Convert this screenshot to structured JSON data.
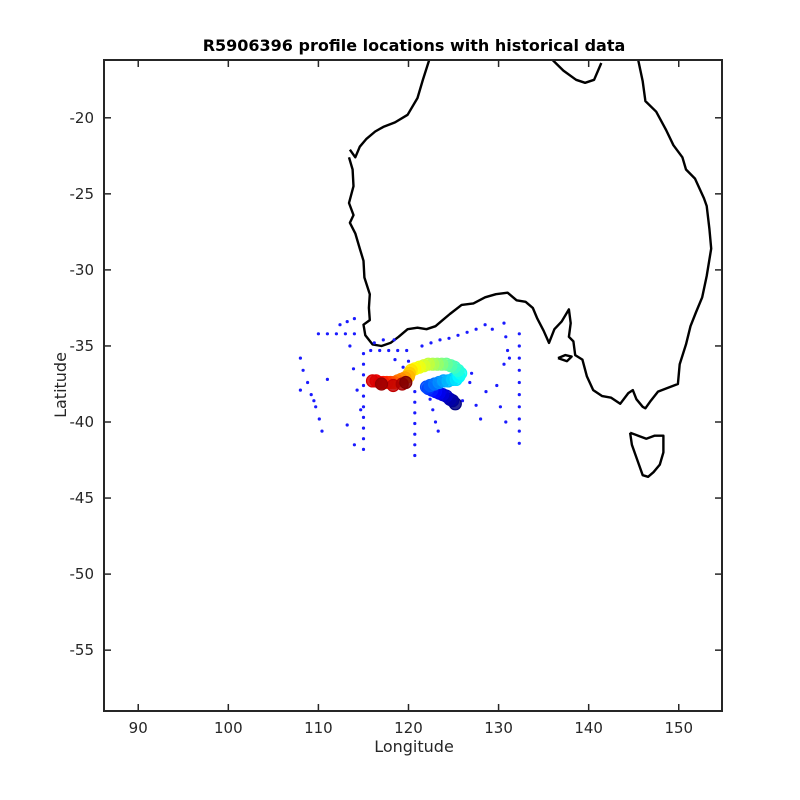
{
  "chart_data": {
    "type": "scatter",
    "title": "R5906396 profile locations with historical data",
    "xlabel": "Longitude",
    "ylabel": "Latitude",
    "xlim": [
      86.2,
      154.8
    ],
    "ylim": [
      -59,
      -16.2
    ],
    "xticks": [
      90,
      100,
      110,
      120,
      130,
      140,
      150
    ],
    "yticks": [
      -20,
      -25,
      -30,
      -35,
      -40,
      -45,
      -50,
      -55
    ],
    "grid": false,
    "colors": {
      "coastline": "#000000",
      "historical": "#1a1aff",
      "float_track_start": "#00008b",
      "float_track_end": "#8b0000"
    },
    "coastlines": [
      {
        "name": "Australia",
        "points": [
          [
            113.4,
            -22.6
          ],
          [
            113.8,
            -23.4
          ],
          [
            113.9,
            -24.5
          ],
          [
            113.4,
            -25.6
          ],
          [
            113.9,
            -26.4
          ],
          [
            113.5,
            -26.9
          ],
          [
            114.1,
            -27.6
          ],
          [
            114.6,
            -28.6
          ],
          [
            115.0,
            -29.4
          ],
          [
            115.1,
            -30.5
          ],
          [
            115.7,
            -31.6
          ],
          [
            115.6,
            -32.5
          ],
          [
            115.7,
            -33.3
          ],
          [
            115.0,
            -33.6
          ],
          [
            115.2,
            -34.3
          ],
          [
            116.0,
            -34.9
          ],
          [
            117.0,
            -35.0
          ],
          [
            118.0,
            -34.8
          ],
          [
            118.9,
            -34.4
          ],
          [
            119.9,
            -33.9
          ],
          [
            121.0,
            -33.8
          ],
          [
            122.0,
            -33.9
          ],
          [
            123.0,
            -33.7
          ],
          [
            123.8,
            -33.3
          ],
          [
            124.6,
            -32.9
          ],
          [
            125.9,
            -32.3
          ],
          [
            127.2,
            -32.2
          ],
          [
            128.5,
            -31.8
          ],
          [
            129.7,
            -31.6
          ],
          [
            131.0,
            -31.5
          ],
          [
            132.0,
            -32.0
          ],
          [
            133.0,
            -32.1
          ],
          [
            133.8,
            -32.5
          ],
          [
            134.3,
            -33.2
          ],
          [
            135.0,
            -34.0
          ],
          [
            135.6,
            -34.8
          ],
          [
            136.2,
            -33.9
          ],
          [
            137.0,
            -33.4
          ],
          [
            137.8,
            -32.6
          ],
          [
            138.0,
            -33.5
          ],
          [
            137.8,
            -34.4
          ],
          [
            138.3,
            -34.7
          ],
          [
            138.5,
            -35.6
          ],
          [
            139.3,
            -35.9
          ],
          [
            139.8,
            -37.0
          ],
          [
            140.5,
            -37.9
          ],
          [
            141.5,
            -38.3
          ],
          [
            142.5,
            -38.4
          ],
          [
            143.5,
            -38.8
          ],
          [
            144.4,
            -38.1
          ],
          [
            144.9,
            -37.9
          ],
          [
            145.3,
            -38.5
          ],
          [
            146.0,
            -39.0
          ],
          [
            146.3,
            -39.1
          ],
          [
            146.9,
            -38.6
          ],
          [
            147.7,
            -38.0
          ],
          [
            148.6,
            -37.8
          ],
          [
            149.9,
            -37.5
          ],
          [
            150.1,
            -36.2
          ],
          [
            150.8,
            -34.9
          ],
          [
            151.3,
            -33.7
          ],
          [
            151.9,
            -32.8
          ],
          [
            152.6,
            -31.8
          ],
          [
            153.1,
            -30.4
          ],
          [
            153.6,
            -28.6
          ],
          [
            153.4,
            -27.3
          ],
          [
            153.1,
            -25.8
          ],
          [
            152.8,
            -25.3
          ],
          [
            151.8,
            -24.0
          ],
          [
            150.8,
            -23.4
          ],
          [
            150.4,
            -22.6
          ],
          [
            149.4,
            -21.8
          ],
          [
            148.6,
            -20.8
          ],
          [
            147.5,
            -19.6
          ],
          [
            146.3,
            -18.9
          ],
          [
            146.0,
            -17.6
          ],
          [
            145.5,
            -16.2
          ]
        ]
      },
      {
        "name": "Tasmania",
        "points": [
          [
            144.6,
            -40.7
          ],
          [
            145.5,
            -40.9
          ],
          [
            146.4,
            -41.1
          ],
          [
            147.3,
            -40.9
          ],
          [
            148.3,
            -40.9
          ],
          [
            148.3,
            -42.0
          ],
          [
            147.9,
            -42.8
          ],
          [
            147.2,
            -43.3
          ],
          [
            146.6,
            -43.6
          ],
          [
            146.0,
            -43.5
          ],
          [
            145.4,
            -42.5
          ],
          [
            144.8,
            -41.5
          ],
          [
            144.6,
            -40.7
          ]
        ]
      },
      {
        "name": "Kangaroo Island",
        "points": [
          [
            136.6,
            -35.8
          ],
          [
            137.4,
            -35.6
          ],
          [
            138.1,
            -35.7
          ],
          [
            137.6,
            -36.0
          ],
          [
            136.6,
            -35.8
          ]
        ]
      },
      {
        "name": "North coast",
        "points": [
          [
            122.3,
            -16.2
          ],
          [
            121.6,
            -17.5
          ],
          [
            121.0,
            -18.7
          ],
          [
            119.9,
            -19.8
          ],
          [
            118.5,
            -20.3
          ],
          [
            117.2,
            -20.6
          ],
          [
            116.3,
            -20.9
          ],
          [
            115.3,
            -21.4
          ],
          [
            114.6,
            -21.9
          ],
          [
            114.1,
            -22.6
          ],
          [
            113.5,
            -22.1
          ]
        ]
      },
      {
        "name": "Gulf of Carpentaria",
        "points": [
          [
            136.0,
            -16.2
          ],
          [
            137.2,
            -16.9
          ],
          [
            138.6,
            -17.5
          ],
          [
            139.6,
            -17.7
          ],
          [
            140.6,
            -17.5
          ],
          [
            141.4,
            -16.4
          ]
        ]
      }
    ],
    "series": [
      {
        "type": "historical",
        "marker": "dot",
        "points": [
          [
            110,
            -34.2
          ],
          [
            111,
            -34.2
          ],
          [
            112,
            -34.2
          ],
          [
            113,
            -34.2
          ],
          [
            114,
            -34.2
          ],
          [
            112.4,
            -33.6
          ],
          [
            113.2,
            -33.4
          ],
          [
            114.0,
            -33.2
          ],
          [
            108,
            -35.8
          ],
          [
            108.3,
            -36.6
          ],
          [
            108.8,
            -37.4
          ],
          [
            109.2,
            -38.2
          ],
          [
            109.7,
            -39.0
          ],
          [
            110.1,
            -39.8
          ],
          [
            110.4,
            -40.6
          ],
          [
            108.0,
            -37.9
          ],
          [
            111.0,
            -37.2
          ],
          [
            109.5,
            -38.6
          ],
          [
            113.5,
            -35.0
          ],
          [
            113.9,
            -36.5
          ],
          [
            114.3,
            -37.9
          ],
          [
            114.7,
            -39.2
          ],
          [
            113.2,
            -40.2
          ],
          [
            114.0,
            -41.5
          ],
          [
            115.0,
            -35.5
          ],
          [
            115.0,
            -36.2
          ],
          [
            115.0,
            -36.9
          ],
          [
            115.0,
            -37.6
          ],
          [
            115.0,
            -38.3
          ],
          [
            115.0,
            -39.0
          ],
          [
            115.0,
            -39.7
          ],
          [
            115.0,
            -40.4
          ],
          [
            115.0,
            -41.1
          ],
          [
            115.0,
            -41.8
          ],
          [
            115.8,
            -35.3
          ],
          [
            116.8,
            -35.3
          ],
          [
            117.8,
            -35.3
          ],
          [
            118.8,
            -35.3
          ],
          [
            119.8,
            -35.3
          ],
          [
            116.2,
            -34.8
          ],
          [
            117.2,
            -34.6
          ],
          [
            118.4,
            -34.6
          ],
          [
            118.5,
            -35.9
          ],
          [
            119.4,
            -36.4
          ],
          [
            120.0,
            -36.0
          ],
          [
            120.7,
            -38.0
          ],
          [
            120.7,
            -38.7
          ],
          [
            120.7,
            -39.4
          ],
          [
            120.7,
            -40.1
          ],
          [
            120.7,
            -40.8
          ],
          [
            120.7,
            -41.5
          ],
          [
            120.7,
            -42.2
          ],
          [
            122.4,
            -38.5
          ],
          [
            122.7,
            -39.2
          ],
          [
            123.0,
            -40.0
          ],
          [
            123.3,
            -40.6
          ],
          [
            121.5,
            -35.0
          ],
          [
            122.5,
            -34.8
          ],
          [
            123.5,
            -34.6
          ],
          [
            124.5,
            -34.5
          ],
          [
            125.5,
            -34.3
          ],
          [
            126.5,
            -34.1
          ],
          [
            127.5,
            -33.9
          ],
          [
            128.5,
            -33.6
          ],
          [
            129.3,
            -33.9
          ],
          [
            126.0,
            -38.6
          ],
          [
            127.5,
            -38.9
          ],
          [
            128.0,
            -39.8
          ],
          [
            128.6,
            -38.0
          ],
          [
            130.6,
            -33.5
          ],
          [
            130.8,
            -34.4
          ],
          [
            131.0,
            -35.3
          ],
          [
            130.6,
            -36.2
          ],
          [
            131.2,
            -35.8
          ],
          [
            132.3,
            -34.2
          ],
          [
            132.3,
            -35.0
          ],
          [
            132.3,
            -35.8
          ],
          [
            132.3,
            -36.6
          ],
          [
            132.3,
            -37.4
          ],
          [
            132.3,
            -38.2
          ],
          [
            132.3,
            -39.0
          ],
          [
            132.3,
            -39.8
          ],
          [
            132.3,
            -40.6
          ],
          [
            132.3,
            -41.4
          ],
          [
            129.8,
            -37.6
          ],
          [
            130.2,
            -39.0
          ],
          [
            130.8,
            -40.0
          ],
          [
            126.8,
            -37.4
          ],
          [
            124.5,
            -36.2
          ],
          [
            127.0,
            -36.8
          ]
        ]
      },
      {
        "type": "float_track",
        "marker": "circle",
        "points": [
          [
            125.2,
            -38.8
          ],
          [
            124.9,
            -38.6
          ],
          [
            124.6,
            -38.5
          ],
          [
            124.2,
            -38.3
          ],
          [
            123.8,
            -38.2
          ],
          [
            123.4,
            -38.1
          ],
          [
            123.0,
            -38.0
          ],
          [
            122.6,
            -37.9
          ],
          [
            122.2,
            -37.8
          ],
          [
            122.0,
            -37.7
          ],
          [
            122.4,
            -37.6
          ],
          [
            122.9,
            -37.5
          ],
          [
            123.4,
            -37.4
          ],
          [
            123.9,
            -37.3
          ],
          [
            124.4,
            -37.3
          ],
          [
            124.9,
            -37.2
          ],
          [
            125.3,
            -37.2
          ],
          [
            125.6,
            -37.0
          ],
          [
            125.8,
            -36.8
          ],
          [
            125.5,
            -36.6
          ],
          [
            125.1,
            -36.4
          ],
          [
            124.7,
            -36.3
          ],
          [
            124.2,
            -36.2
          ],
          [
            123.7,
            -36.2
          ],
          [
            123.2,
            -36.2
          ],
          [
            122.7,
            -36.2
          ],
          [
            122.2,
            -36.2
          ],
          [
            121.7,
            -36.3
          ],
          [
            121.2,
            -36.4
          ],
          [
            120.7,
            -36.5
          ],
          [
            120.3,
            -36.6
          ],
          [
            120.1,
            -36.8
          ],
          [
            120.0,
            -37.0
          ],
          [
            119.6,
            -37.1
          ],
          [
            119.2,
            -37.2
          ],
          [
            118.8,
            -37.3
          ],
          [
            118.4,
            -37.4
          ],
          [
            118.0,
            -37.4
          ],
          [
            117.6,
            -37.4
          ],
          [
            117.2,
            -37.4
          ],
          [
            116.8,
            -37.4
          ],
          [
            116.4,
            -37.3
          ],
          [
            116.0,
            -37.3
          ],
          [
            118.3,
            -37.6
          ],
          [
            119.3,
            -37.5
          ],
          [
            117.0,
            -37.5
          ],
          [
            119.7,
            -37.4
          ]
        ]
      }
    ]
  }
}
